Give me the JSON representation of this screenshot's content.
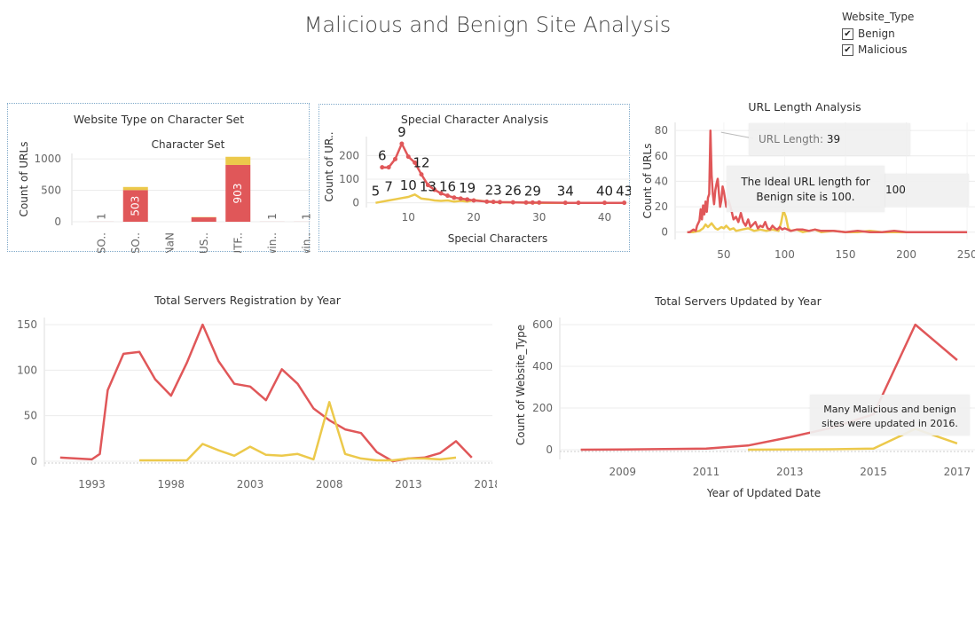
{
  "dashboard": {
    "title": "Malicious and Benign Site Analysis"
  },
  "legend": {
    "title": "Website_Type",
    "items": [
      {
        "label": "Benign",
        "checked": true
      },
      {
        "label": "Malicious",
        "checked": true
      }
    ]
  },
  "colors": {
    "benign": "#ecc94b",
    "malicious": "#e05759",
    "grid": "#ececec"
  },
  "tooltips": {
    "url_length_label": "URL Length:",
    "url_length_value": "39",
    "url_ideal_note": "The Ideal URL length for Benign site is 100.",
    "url_ideal_value": "100",
    "updated_note": "Many Malicious and benign sites were updated in 2016."
  },
  "chart_data": [
    {
      "id": "charset",
      "type": "bar",
      "title": "Website Type on Character Set",
      "subtitle": "Character Set",
      "ylabel": "Count of URLs",
      "ylim": [
        0,
        1100
      ],
      "yticks": [
        0,
        500,
        1000
      ],
      "categories": [
        "ISO..",
        "ISO..",
        "NaN",
        "US..",
        "UTF..",
        "win..",
        "win.."
      ],
      "series": [
        {
          "name": "Malicious",
          "values": [
            1,
            503,
            0,
            70,
            903,
            1,
            1
          ]
        },
        {
          "name": "Benign",
          "values": [
            0,
            50,
            0,
            5,
            130,
            0,
            0
          ]
        }
      ],
      "bar_labels": [
        "1",
        "503",
        "",
        "",
        "903",
        "1",
        "1"
      ]
    },
    {
      "id": "special",
      "type": "line",
      "title": "Special Character Analysis",
      "xlabel": "Special Characters",
      "ylabel": "Count of UR..",
      "xlim": [
        4,
        44
      ],
      "ylim": [
        -20,
        280
      ],
      "xticks": [
        10,
        20,
        30,
        40
      ],
      "yticks": [
        0,
        100,
        200
      ],
      "series": [
        {
          "name": "Malicious",
          "x": [
            6,
            7,
            8,
            9,
            10,
            11,
            12,
            13,
            14,
            15,
            16,
            17,
            18,
            19,
            20,
            22,
            23,
            24,
            26,
            28,
            29,
            30,
            34,
            36,
            40,
            43
          ],
          "y": [
            150,
            150,
            185,
            250,
            195,
            170,
            120,
            75,
            55,
            40,
            30,
            22,
            18,
            14,
            10,
            5,
            4,
            3,
            2,
            1,
            1,
            1,
            0,
            0,
            0,
            0
          ]
        },
        {
          "name": "Benign",
          "x": [
            5,
            6,
            7,
            8,
            9,
            10,
            11,
            12,
            13,
            14,
            15,
            16,
            17,
            18,
            19,
            20,
            22,
            23,
            24,
            26,
            29,
            30,
            34,
            40,
            43
          ],
          "y": [
            0,
            5,
            10,
            15,
            20,
            25,
            35,
            18,
            15,
            10,
            8,
            10,
            5,
            8,
            5,
            12,
            5,
            3,
            2,
            2,
            0,
            0,
            0,
            0,
            0
          ]
        }
      ],
      "point_labels": [
        {
          "x": 5,
          "y": 0,
          "text": "5"
        },
        {
          "x": 6,
          "y": 150,
          "text": "6"
        },
        {
          "x": 7,
          "y": 20,
          "text": "7"
        },
        {
          "x": 9,
          "y": 250,
          "text": "9"
        },
        {
          "x": 10,
          "y": 25,
          "text": "10"
        },
        {
          "x": 12,
          "y": 120,
          "text": "12"
        },
        {
          "x": 13,
          "y": 20,
          "text": "13"
        },
        {
          "x": 16,
          "y": 20,
          "text": "16"
        },
        {
          "x": 19,
          "y": 14,
          "text": "19"
        },
        {
          "x": 23,
          "y": 4,
          "text": "23"
        },
        {
          "x": 26,
          "y": 2,
          "text": "26"
        },
        {
          "x": 29,
          "y": 1,
          "text": "29"
        },
        {
          "x": 34,
          "y": 0,
          "text": "34"
        },
        {
          "x": 40,
          "y": 0,
          "text": "40"
        },
        {
          "x": 43,
          "y": 0,
          "text": "43"
        }
      ]
    },
    {
      "id": "urllen",
      "type": "line",
      "title": "URL Length Analysis",
      "ylabel": "Count of URLs",
      "xlim": [
        10,
        255
      ],
      "ylim": [
        -3,
        85
      ],
      "xticks": [
        50,
        100,
        150,
        200,
        250
      ],
      "yticks": [
        0,
        20,
        40,
        60,
        80
      ],
      "series": [
        {
          "name": "Malicious",
          "x": [
            20,
            22,
            25,
            27,
            28,
            30,
            31,
            32,
            33,
            34,
            35,
            36,
            37,
            38,
            39,
            40,
            41,
            42,
            43,
            44,
            45,
            46,
            47,
            48,
            49,
            50,
            52,
            54,
            56,
            58,
            60,
            62,
            64,
            66,
            68,
            70,
            72,
            74,
            76,
            78,
            80,
            82,
            84,
            86,
            88,
            90,
            92,
            94,
            96,
            98,
            100,
            105,
            110,
            115,
            120,
            125,
            130,
            140,
            150,
            160,
            170,
            180,
            190,
            200,
            210,
            220,
            230,
            240,
            250
          ],
          "y": [
            0,
            0,
            2,
            1,
            5,
            9,
            18,
            10,
            21,
            14,
            24,
            16,
            27,
            30,
            80,
            45,
            30,
            22,
            33,
            38,
            42,
            30,
            20,
            25,
            36,
            32,
            20,
            25,
            18,
            10,
            12,
            8,
            15,
            8,
            5,
            10,
            4,
            6,
            8,
            3,
            5,
            4,
            8,
            3,
            2,
            5,
            3,
            2,
            4,
            2,
            3,
            1,
            2,
            2,
            1,
            2,
            1,
            1,
            0,
            1,
            0,
            0,
            1,
            0,
            0,
            0,
            0,
            0,
            0
          ]
        },
        {
          "name": "Benign",
          "x": [
            20,
            25,
            30,
            33,
            35,
            37,
            40,
            43,
            45,
            48,
            50,
            52,
            55,
            58,
            60,
            65,
            70,
            75,
            80,
            85,
            90,
            95,
            97,
            99,
            101,
            103,
            105,
            110,
            115,
            120,
            125,
            130,
            140,
            150,
            160,
            170,
            180,
            190,
            195,
            200
          ],
          "y": [
            0,
            0,
            1,
            3,
            6,
            4,
            7,
            3,
            2,
            4,
            3,
            5,
            2,
            3,
            1,
            2,
            3,
            1,
            2,
            1,
            2,
            1,
            7,
            17,
            12,
            3,
            1,
            2,
            0,
            1,
            2,
            0,
            1,
            0,
            0,
            1,
            0,
            0,
            0,
            0
          ]
        }
      ]
    },
    {
      "id": "registration",
      "type": "line",
      "title": "Total Servers Registration by Year",
      "xlim": [
        1990,
        2018.3
      ],
      "ylim": [
        -3,
        150
      ],
      "xticks": [
        1993,
        1998,
        2003,
        2008,
        2013,
        2018
      ],
      "yticks": [
        0,
        50,
        100,
        150
      ],
      "series": [
        {
          "name": "Malicious",
          "x": [
            1991,
            1992,
            1993,
            1993.5,
            1994,
            1995,
            1996,
            1997,
            1998,
            1999,
            2000,
            2001,
            2002,
            2003,
            2004,
            2005,
            2006,
            2007,
            2008,
            2009,
            2010,
            2011,
            2012,
            2013,
            2014,
            2015,
            2016,
            2017
          ],
          "y": [
            4,
            3,
            2,
            8,
            78,
            118,
            120,
            90,
            72,
            108,
            150,
            110,
            85,
            82,
            67,
            101,
            85,
            58,
            45,
            35,
            31,
            10,
            0,
            3,
            4,
            9,
            22,
            4
          ]
        },
        {
          "name": "Benign",
          "x": [
            1996,
            1997,
            1998,
            1999,
            2000,
            2001,
            2002,
            2003,
            2004,
            2005,
            2006,
            2007,
            2008,
            2009,
            2010,
            2011,
            2012,
            2013,
            2014,
            2015,
            2016
          ],
          "y": [
            1,
            1,
            1,
            1,
            19,
            12,
            6,
            16,
            7,
            6,
            8,
            2,
            65,
            8,
            3,
            1,
            1,
            3,
            3,
            2,
            4
          ]
        }
      ]
    },
    {
      "id": "updated",
      "type": "line",
      "title": "Total Servers Updated by Year",
      "xlabel": "Year of Updated Date",
      "ylabel": "Count of Website_Type",
      "xlim": [
        2007.5,
        2017.3
      ],
      "ylim": [
        -20,
        630
      ],
      "xticks": [
        2009,
        2011,
        2013,
        2015,
        2017
      ],
      "yticks": [
        0,
        200,
        400,
        600
      ],
      "series": [
        {
          "name": "Malicious",
          "x": [
            2008,
            2009,
            2010,
            2011,
            2012,
            2013,
            2014,
            2015,
            2016,
            2017
          ],
          "y": [
            0,
            1,
            3,
            5,
            20,
            60,
            105,
            170,
            600,
            430
          ]
        },
        {
          "name": "Benign",
          "x": [
            2012,
            2013,
            2014,
            2015,
            2016,
            2017
          ],
          "y": [
            0,
            1,
            2,
            5,
            100,
            30
          ]
        }
      ]
    }
  ]
}
